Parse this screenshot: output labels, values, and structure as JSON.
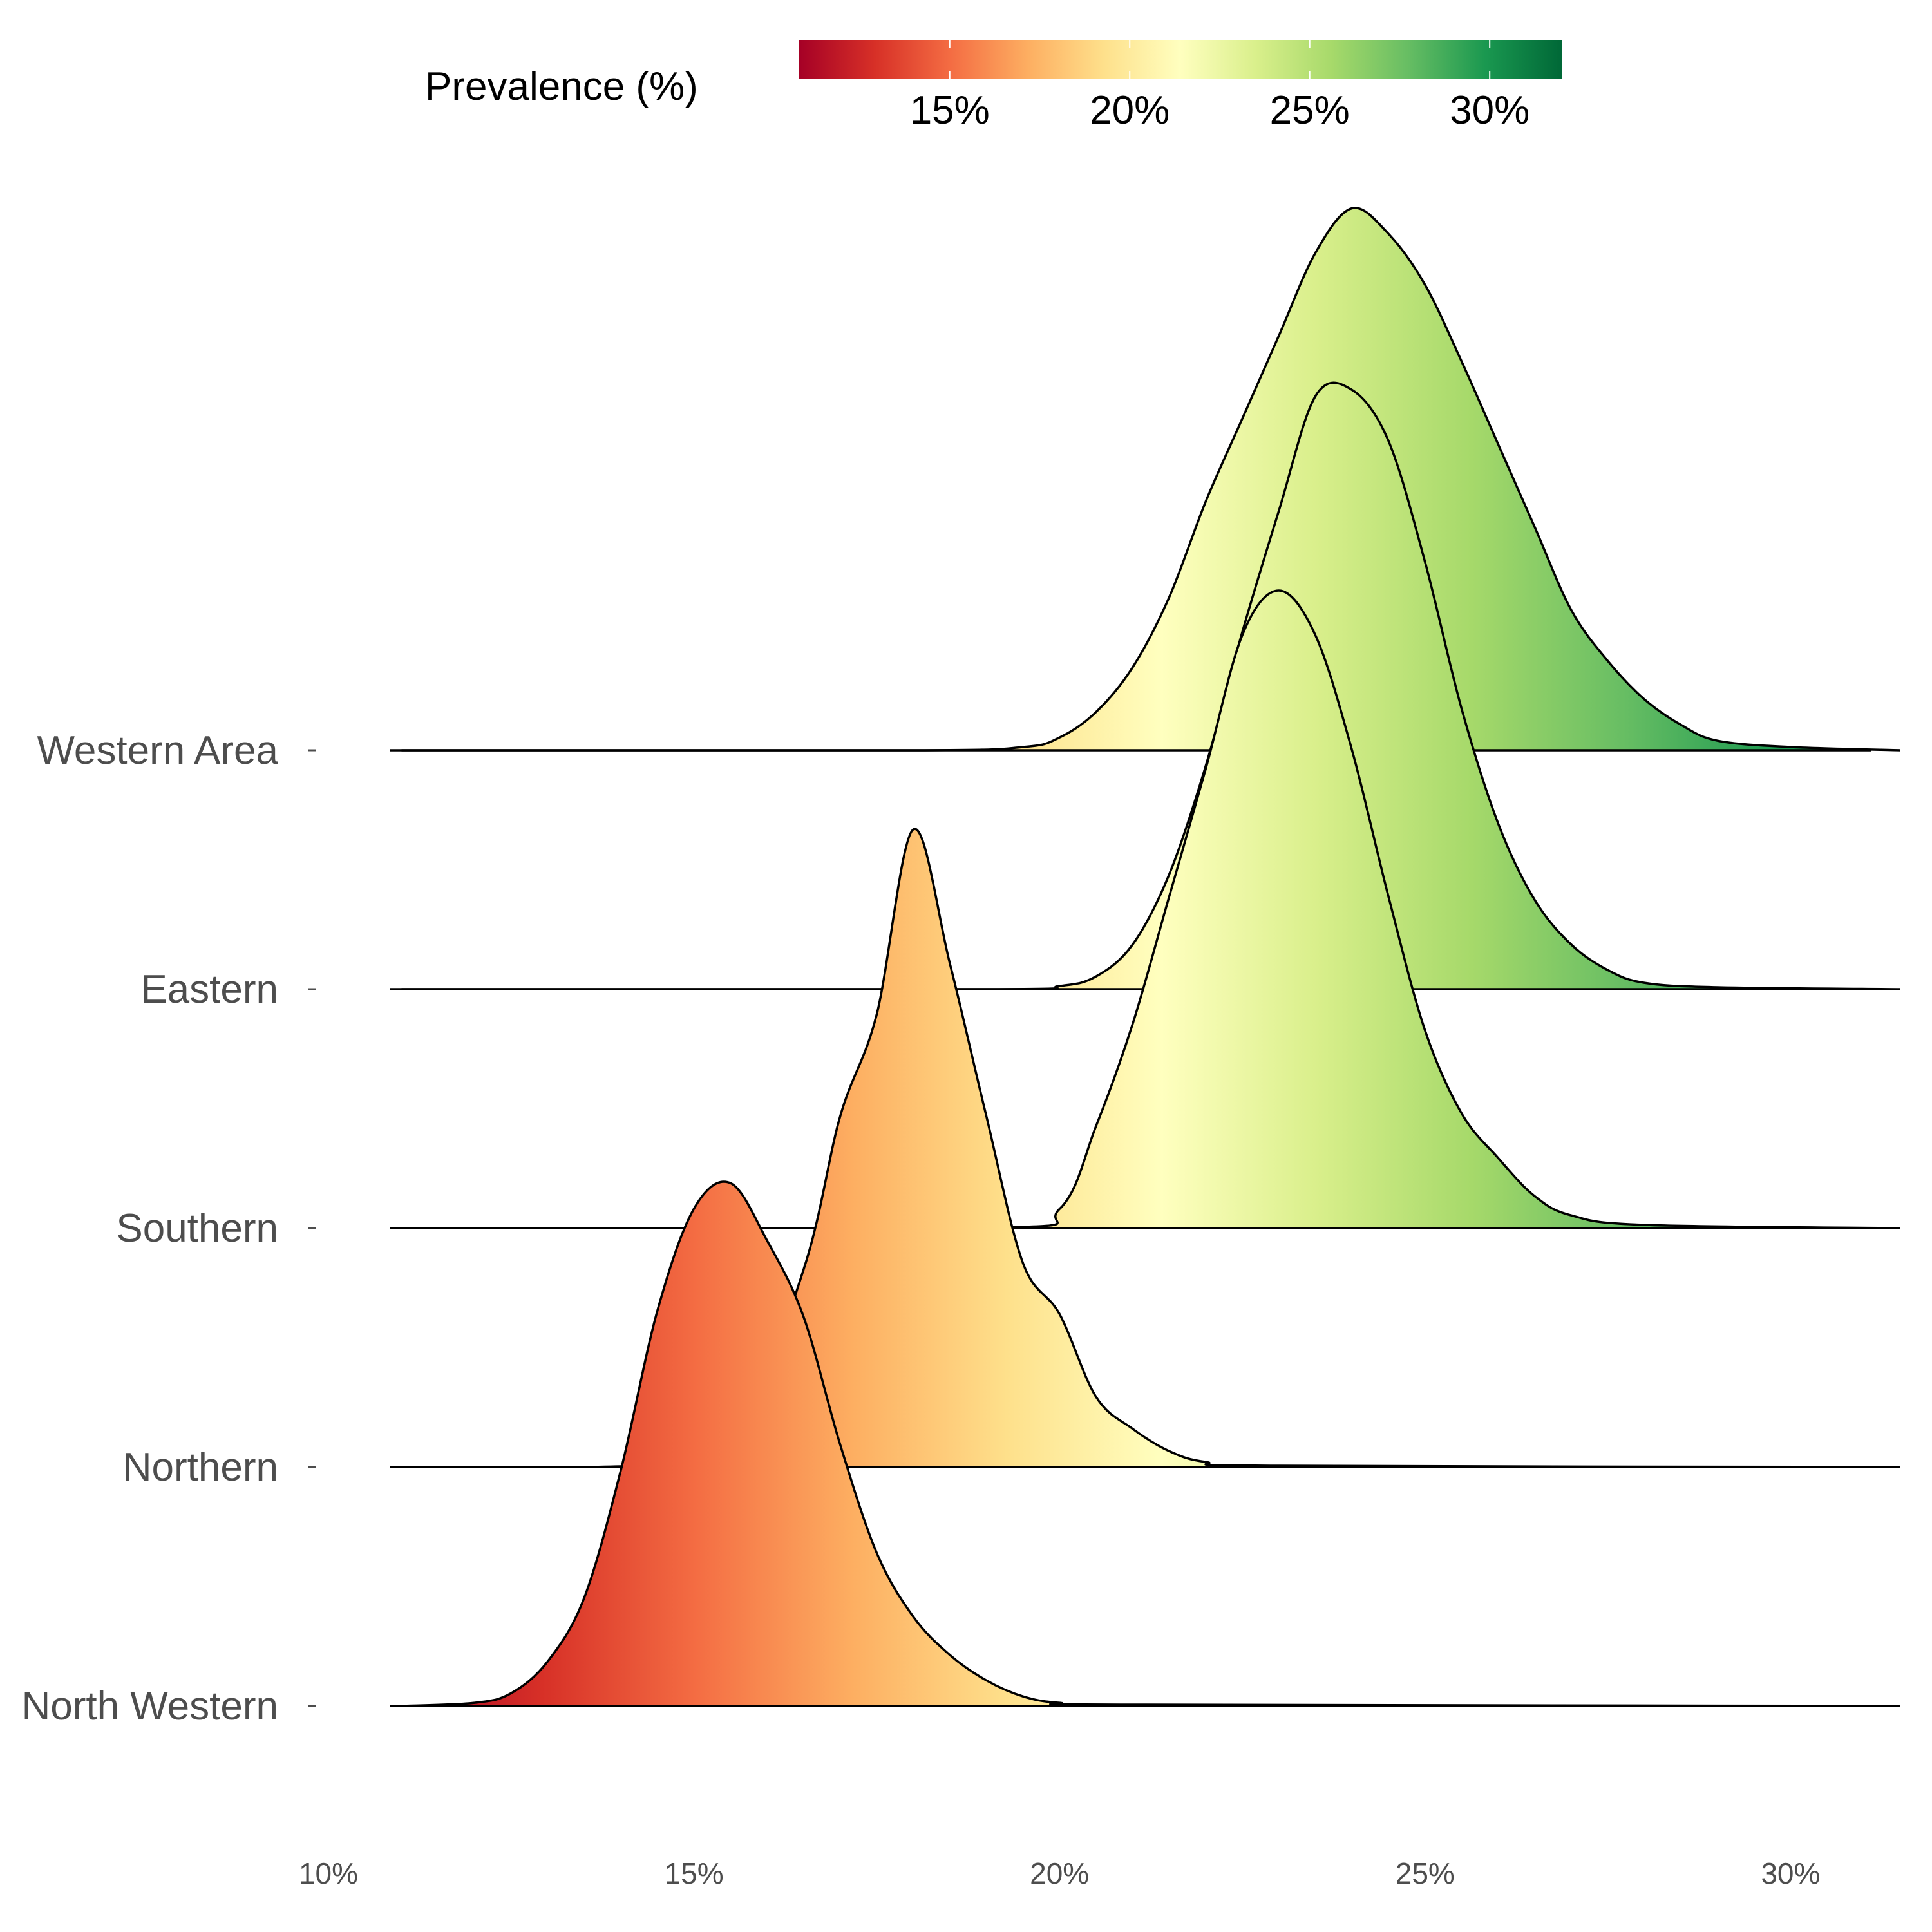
{
  "chart_data": {
    "type": "ridgeline",
    "xlim": [
      10,
      31.6
    ],
    "x_ticks": [
      10,
      15,
      20,
      25,
      30
    ],
    "x_tick_labels": [
      "10%",
      "15%",
      "20%",
      "25%",
      "30%"
    ],
    "xlabel": "",
    "ylabel": "",
    "categories": [
      "Western Area",
      "Eastern",
      "Southern",
      "Northern",
      "North Western"
    ],
    "series": [
      {
        "name": "Western Area",
        "points": [
          [
            11.0,
            0
          ],
          [
            18.0,
            0
          ],
          [
            19.5,
            0.005
          ],
          [
            20.0,
            0.02
          ],
          [
            20.5,
            0.06
          ],
          [
            21.0,
            0.13
          ],
          [
            21.5,
            0.24
          ],
          [
            22.0,
            0.39
          ],
          [
            22.5,
            0.52
          ],
          [
            23.0,
            0.65
          ],
          [
            23.5,
            0.78
          ],
          [
            24.0,
            0.85
          ],
          [
            24.5,
            0.81
          ],
          [
            25.0,
            0.73
          ],
          [
            25.5,
            0.61
          ],
          [
            26.0,
            0.48
          ],
          [
            26.5,
            0.35
          ],
          [
            27.0,
            0.22
          ],
          [
            27.5,
            0.14
          ],
          [
            28.0,
            0.08
          ],
          [
            28.5,
            0.04
          ],
          [
            29.0,
            0.015
          ],
          [
            30.0,
            0.005
          ],
          [
            31.5,
            0
          ]
        ]
      },
      {
        "name": "Eastern",
        "points": [
          [
            11.0,
            0
          ],
          [
            19.0,
            0
          ],
          [
            20.0,
            0.005
          ],
          [
            20.5,
            0.02
          ],
          [
            21.0,
            0.07
          ],
          [
            21.5,
            0.18
          ],
          [
            22.0,
            0.35
          ],
          [
            22.5,
            0.56
          ],
          [
            23.0,
            0.75
          ],
          [
            23.5,
            0.93
          ],
          [
            24.0,
            0.94
          ],
          [
            24.5,
            0.86
          ],
          [
            25.0,
            0.67
          ],
          [
            25.5,
            0.44
          ],
          [
            26.0,
            0.26
          ],
          [
            26.5,
            0.14
          ],
          [
            27.0,
            0.07
          ],
          [
            27.5,
            0.03
          ],
          [
            28.0,
            0.01
          ],
          [
            29.0,
            0.003
          ],
          [
            31.5,
            0
          ]
        ]
      },
      {
        "name": "Southern",
        "points": [
          [
            11.0,
            0
          ],
          [
            19.0,
            0
          ],
          [
            20.0,
            0.03
          ],
          [
            20.5,
            0.16
          ],
          [
            21.0,
            0.32
          ],
          [
            21.5,
            0.52
          ],
          [
            22.0,
            0.72
          ],
          [
            22.5,
            0.93
          ],
          [
            23.0,
            1.0
          ],
          [
            23.5,
            0.93
          ],
          [
            24.0,
            0.75
          ],
          [
            24.5,
            0.52
          ],
          [
            25.0,
            0.31
          ],
          [
            25.5,
            0.18
          ],
          [
            26.0,
            0.11
          ],
          [
            26.5,
            0.05
          ],
          [
            27.0,
            0.02
          ],
          [
            28.0,
            0.005
          ],
          [
            31.5,
            0
          ]
        ]
      },
      {
        "name": "Northern",
        "points": [
          [
            11.0,
            0
          ],
          [
            13.5,
            0
          ],
          [
            14.5,
            0.005
          ],
          [
            15.5,
            0.02
          ],
          [
            16.5,
            0.31
          ],
          [
            17.0,
            0.55
          ],
          [
            17.5,
            0.71
          ],
          [
            18.0,
            1.0
          ],
          [
            18.5,
            0.79
          ],
          [
            19.0,
            0.55
          ],
          [
            19.5,
            0.32
          ],
          [
            20.0,
            0.24
          ],
          [
            20.5,
            0.11
          ],
          [
            21.0,
            0.06
          ],
          [
            21.5,
            0.025
          ],
          [
            22.0,
            0.008
          ],
          [
            23.0,
            0.002
          ],
          [
            31.5,
            0
          ]
        ]
      },
      {
        "name": "North Western",
        "points": [
          [
            11.0,
            0
          ],
          [
            12.0,
            0.005
          ],
          [
            12.5,
            0.02
          ],
          [
            13.0,
            0.07
          ],
          [
            13.5,
            0.17
          ],
          [
            14.0,
            0.37
          ],
          [
            14.5,
            0.62
          ],
          [
            15.0,
            0.78
          ],
          [
            15.5,
            0.82
          ],
          [
            16.0,
            0.73
          ],
          [
            16.5,
            0.61
          ],
          [
            17.0,
            0.41
          ],
          [
            17.5,
            0.24
          ],
          [
            18.0,
            0.14
          ],
          [
            18.5,
            0.08
          ],
          [
            19.0,
            0.04
          ],
          [
            19.5,
            0.015
          ],
          [
            20.0,
            0.005
          ],
          [
            21.0,
            0.002
          ],
          [
            31.5,
            0
          ]
        ]
      }
    ],
    "legend": {
      "title": "Prevalence (%)",
      "position": "top",
      "range": [
        10.8,
        32.0
      ],
      "tick_values": [
        15,
        20,
        25,
        30
      ],
      "tick_labels": [
        "15%",
        "20%",
        "25%",
        "30%"
      ]
    },
    "color_scale": {
      "name": "RdYlGn",
      "stops": [
        "#a50026",
        "#d73027",
        "#f46d43",
        "#fdae61",
        "#fee08b",
        "#ffffbf",
        "#d9ef8b",
        "#a6d96a",
        "#66bd63",
        "#1a9850",
        "#006837"
      ]
    }
  }
}
